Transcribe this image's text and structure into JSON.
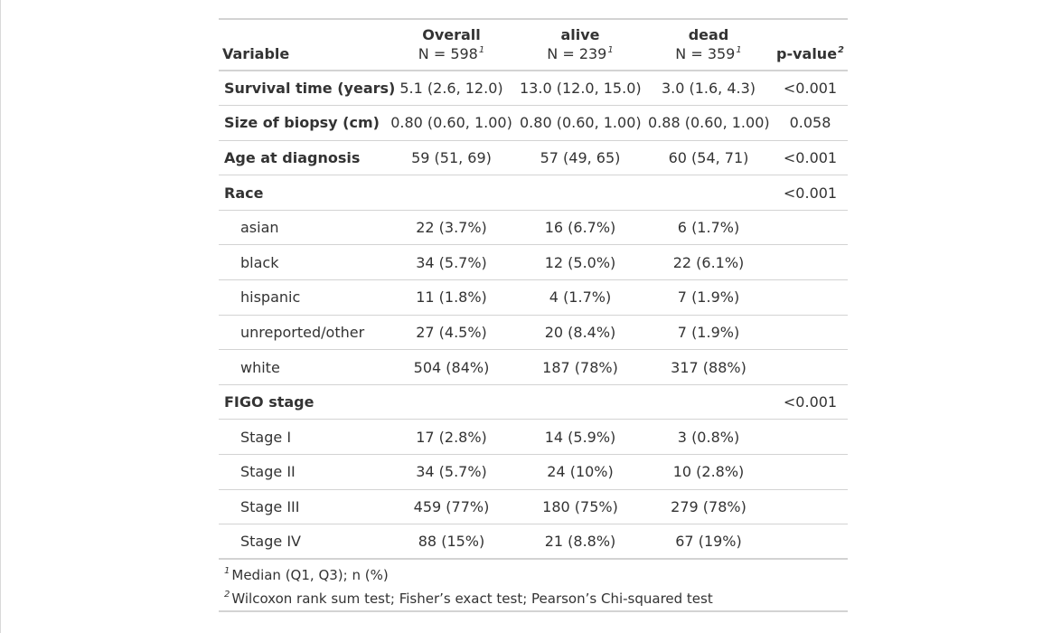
{
  "table": {
    "header": {
      "variable": "Variable",
      "columns": [
        {
          "label": "Overall",
          "n": "N = 598",
          "mark": "1"
        },
        {
          "label": "alive",
          "n": "N = 239",
          "mark": "1"
        },
        {
          "label": "dead",
          "n": "N = 359",
          "mark": "1"
        }
      ],
      "pvalue": {
        "label": "p-value",
        "mark": "2"
      }
    },
    "rows": [
      {
        "label": "Survival time (years)",
        "style": "bold",
        "cells": [
          "5.1 (2.6, 12.0)",
          "13.0 (12.0, 15.0)",
          "3.0 (1.6, 4.3)"
        ],
        "p": "<0.001"
      },
      {
        "label": "Size of biopsy (cm)",
        "style": "bold",
        "cells": [
          "0.80 (0.60, 1.00)",
          "0.80 (0.60, 1.00)",
          "0.88 (0.60, 1.00)"
        ],
        "p": "0.058"
      },
      {
        "label": "Age at diagnosis",
        "style": "bold",
        "cells": [
          "59 (51, 69)",
          "57 (49, 65)",
          "60 (54, 71)"
        ],
        "p": "<0.001"
      },
      {
        "label": "Race",
        "style": "bold",
        "cells": [
          "",
          "",
          ""
        ],
        "p": "<0.001"
      },
      {
        "label": "asian",
        "style": "indent",
        "cells": [
          "22 (3.7%)",
          "16 (6.7%)",
          "6 (1.7%)"
        ],
        "p": ""
      },
      {
        "label": "black",
        "style": "indent",
        "cells": [
          "34 (5.7%)",
          "12 (5.0%)",
          "22 (6.1%)"
        ],
        "p": ""
      },
      {
        "label": "hispanic",
        "style": "indent",
        "cells": [
          "11 (1.8%)",
          "4 (1.7%)",
          "7 (1.9%)"
        ],
        "p": ""
      },
      {
        "label": "unreported/other",
        "style": "indent",
        "cells": [
          "27 (4.5%)",
          "20 (8.4%)",
          "7 (1.9%)"
        ],
        "p": ""
      },
      {
        "label": "white",
        "style": "indent",
        "cells": [
          "504 (84%)",
          "187 (78%)",
          "317 (88%)"
        ],
        "p": ""
      },
      {
        "label": "FIGO stage",
        "style": "bold",
        "cells": [
          "",
          "",
          ""
        ],
        "p": "<0.001"
      },
      {
        "label": "Stage I",
        "style": "indent",
        "cells": [
          "17 (2.8%)",
          "14 (5.9%)",
          "3 (0.8%)"
        ],
        "p": ""
      },
      {
        "label": "Stage II",
        "style": "indent",
        "cells": [
          "34 (5.7%)",
          "24 (10%)",
          "10 (2.8%)"
        ],
        "p": ""
      },
      {
        "label": "Stage III",
        "style": "indent",
        "cells": [
          "459 (77%)",
          "180 (75%)",
          "279 (78%)"
        ],
        "p": ""
      },
      {
        "label": "Stage IV",
        "style": "indent",
        "cells": [
          "88 (15%)",
          "21 (8.8%)",
          "67 (19%)"
        ],
        "p": ""
      }
    ],
    "footnotes": [
      {
        "mark": "1",
        "text": "Median (Q1, Q3); n (%)"
      },
      {
        "mark": "2",
        "text": "Wilcoxon rank sum test; Fisher’s exact test; Pearson’s Chi-squared test"
      }
    ]
  }
}
